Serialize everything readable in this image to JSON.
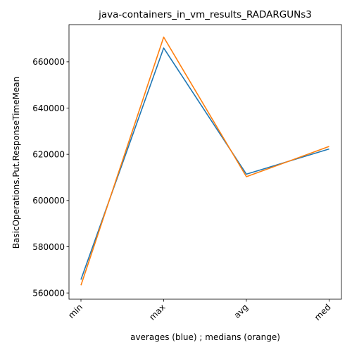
{
  "chart_data": {
    "type": "line",
    "title": "java-containers_in_vm_results_RADARGUNs3",
    "xlabel": "averages (blue) ; medians (orange)",
    "ylabel": "BasicOperations.Put.ResponseTimeMean",
    "categories": [
      "min",
      "max",
      "avg",
      "med"
    ],
    "yticks": [
      560000,
      580000,
      600000,
      620000,
      640000,
      660000
    ],
    "ylim": [
      557300,
      676100
    ],
    "grid": false,
    "series": [
      {
        "color": "#1f77b4",
        "values": [
          565800,
          666000,
          611400,
          622300
        ]
      },
      {
        "color": "#ff7f0e",
        "values": [
          563300,
          670700,
          610300,
          623400
        ]
      }
    ]
  }
}
